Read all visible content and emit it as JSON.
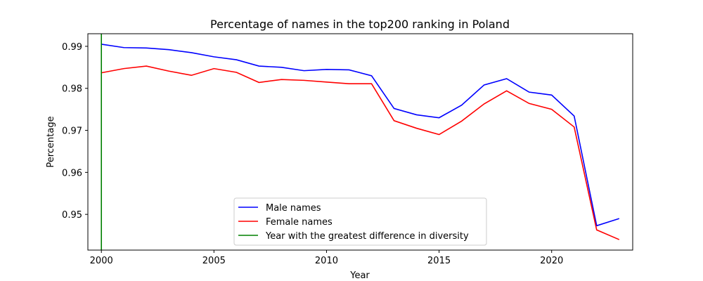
{
  "chart_data": {
    "type": "line",
    "title": "Percentage of names in the top200 ranking in Poland",
    "xlabel": "Year",
    "ylabel": "Percentage",
    "xlim": [
      1999.4,
      2023.6
    ],
    "ylim": [
      0.9415,
      0.993
    ],
    "x_ticks": [
      2000,
      2005,
      2010,
      2015,
      2020
    ],
    "x_tick_labels": [
      "2000",
      "2005",
      "2010",
      "2015",
      "2020"
    ],
    "y_ticks": [
      0.95,
      0.96,
      0.97,
      0.98,
      0.99
    ],
    "y_tick_labels": [
      "0.95",
      "0.96",
      "0.97",
      "0.98",
      "0.99"
    ],
    "grid": false,
    "legend_position": "bottom-center",
    "x": [
      2000,
      2001,
      2002,
      2003,
      2004,
      2005,
      2006,
      2007,
      2008,
      2009,
      2010,
      2011,
      2012,
      2013,
      2014,
      2015,
      2016,
      2017,
      2018,
      2019,
      2020,
      2021,
      2022,
      2023
    ],
    "series": [
      {
        "name": "Male names",
        "color": "#0000ff",
        "values": [
          0.9905,
          0.9897,
          0.9896,
          0.9892,
          0.9885,
          0.9875,
          0.9868,
          0.9853,
          0.985,
          0.9842,
          0.9845,
          0.9844,
          0.983,
          0.9752,
          0.9737,
          0.973,
          0.976,
          0.9808,
          0.9823,
          0.9791,
          0.9784,
          0.9734,
          0.9473,
          0.949
        ]
      },
      {
        "name": "Female names",
        "color": "#ff0000",
        "values": [
          0.9837,
          0.9847,
          0.9853,
          0.9841,
          0.9831,
          0.9847,
          0.9838,
          0.9814,
          0.9821,
          0.9819,
          0.9815,
          0.9811,
          0.9811,
          0.9723,
          0.9705,
          0.969,
          0.9722,
          0.9763,
          0.9794,
          0.9764,
          0.975,
          0.9708,
          0.9463,
          0.944
        ]
      }
    ],
    "vlines": [
      {
        "name": "Year with the greatest difference in diversity",
        "x": 2000,
        "color": "#008000"
      }
    ]
  }
}
